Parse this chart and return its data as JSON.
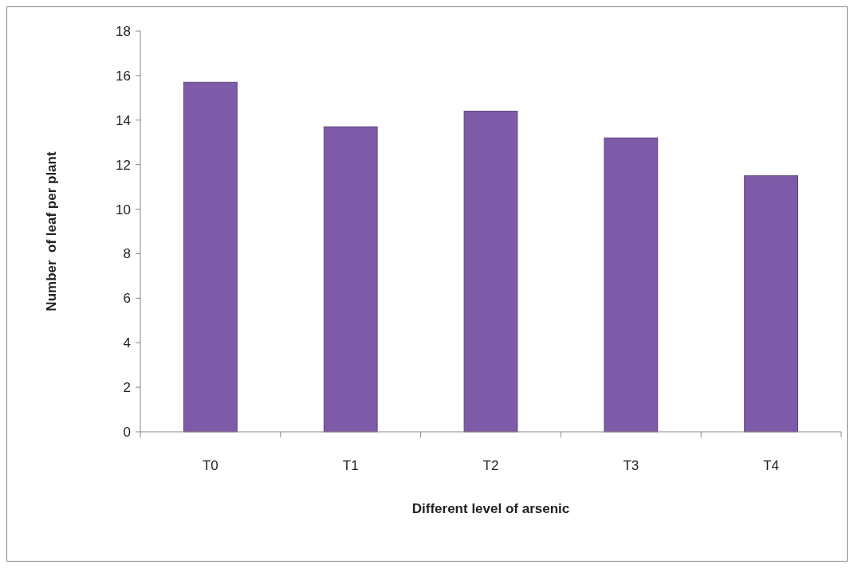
{
  "chart_data": {
    "type": "bar",
    "xlabel": "Different level of arsenic",
    "ylabel": "Number  of leaf per plant",
    "categories": [
      "T0",
      "T1",
      "T2",
      "T3",
      "T4"
    ],
    "values": [
      15.7,
      13.7,
      14.4,
      13.2,
      11.5
    ],
    "color": "#7e5ba8",
    "ylim": [
      0,
      18
    ],
    "yticks": [
      0,
      2,
      4,
      6,
      8,
      10,
      12,
      14,
      16,
      18
    ],
    "grid": false
  }
}
